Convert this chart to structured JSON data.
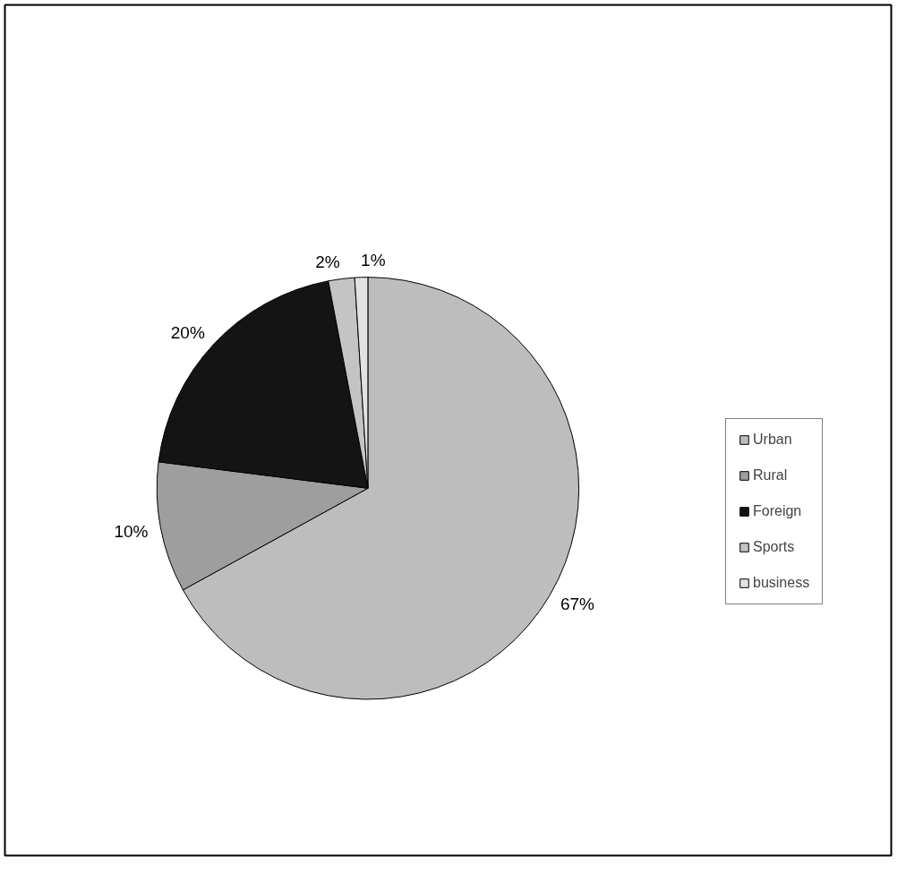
{
  "chart_data": {
    "type": "pie",
    "categories": [
      "Urban",
      "Rural",
      "Foreign",
      "Sports",
      "business"
    ],
    "values": [
      67,
      10,
      20,
      2,
      1
    ],
    "colors": [
      "#bdbdbd",
      "#9e9e9e",
      "#141414",
      "#c4c4c4",
      "#e2e2e2"
    ],
    "value_labels": [
      "67%",
      "10%",
      "20%",
      "2%",
      "1%"
    ],
    "legend": "right"
  }
}
